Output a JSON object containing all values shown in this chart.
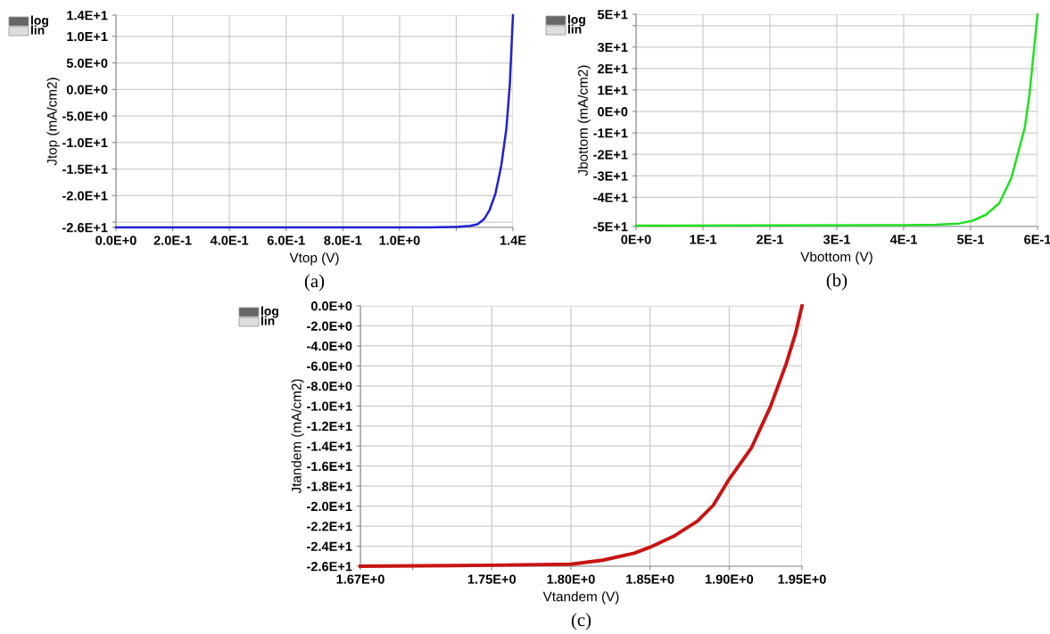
{
  "chart_data": [
    {
      "type": "line",
      "xlabel": "Vtop (V)",
      "ylabel": "Jtop (mA/cm2)",
      "annotations": [
        "log",
        "lin",
        "(a)"
      ],
      "grid": true,
      "xlim": [
        0,
        1.4
      ],
      "ylim": [
        -26,
        14
      ],
      "xticks": [
        {
          "value": 0,
          "label": "0.0E+0"
        },
        {
          "value": 0.2,
          "label": "2.0E-1"
        },
        {
          "value": 0.4,
          "label": "4.0E-1"
        },
        {
          "value": 0.6,
          "label": "6.0E-1"
        },
        {
          "value": 0.8,
          "label": "8.0E-1"
        },
        {
          "value": 1.0,
          "label": "1.0E+0"
        },
        {
          "value": 1.2,
          "label": null
        },
        {
          "value": 1.4,
          "label": "1.4E"
        }
      ],
      "yticks": [
        {
          "value": -26,
          "label": "-2.6E+1"
        },
        {
          "value": -25,
          "label": null
        },
        {
          "value": -20,
          "label": "-2.0E+1"
        },
        {
          "value": -15,
          "label": "-1.5E+1"
        },
        {
          "value": -10,
          "label": "-1.0E+1"
        },
        {
          "value": -5,
          "label": "-5.0E+0"
        },
        {
          "value": 0,
          "label": "0.0E+0"
        },
        {
          "value": 5,
          "label": "5.0E+0"
        },
        {
          "value": 10,
          "label": "1.0E+1"
        },
        {
          "value": 14,
          "label": "1.4E+1"
        }
      ],
      "series": [
        {
          "color": "#1f22d0",
          "x": [
            0,
            0.4,
            0.8,
            1.1,
            1.2,
            1.25,
            1.275,
            1.299,
            1.317,
            1.338,
            1.359,
            1.377,
            1.389,
            1.4
          ],
          "values": [
            -26,
            -26,
            -26,
            -26,
            -25.9,
            -25.7,
            -25.4,
            -24.4,
            -22.8,
            -19.7,
            -14.3,
            -7.3,
            1,
            14
          ]
        }
      ]
    },
    {
      "type": "line",
      "xlabel": "Vbottom (V)",
      "ylabel": "Jbottom (mA/cm2)",
      "annotations": [
        "log",
        "lin",
        "(b)"
      ],
      "grid": true,
      "xlim": [
        0,
        0.6
      ],
      "ylim": [
        -53.6,
        45.3
      ],
      "xticks": [
        {
          "value": 0,
          "label": "0E+0"
        },
        {
          "value": 0.1,
          "label": "1E-1"
        },
        {
          "value": 0.2,
          "label": "2E-1"
        },
        {
          "value": 0.3,
          "label": "3E-1"
        },
        {
          "value": 0.4,
          "label": "4E-1"
        },
        {
          "value": 0.5,
          "label": "5E-1"
        },
        {
          "value": 0.6,
          "label": "6E-1"
        }
      ],
      "yticks": [
        {
          "value": -53.6,
          "label": "-5E+1"
        },
        {
          "value": -40,
          "label": "-4E+1"
        },
        {
          "value": -30,
          "label": "-3E+1"
        },
        {
          "value": -20,
          "label": "-2E+1"
        },
        {
          "value": -10,
          "label": "-1E+1"
        },
        {
          "value": 0,
          "label": "0E+0"
        },
        {
          "value": 10,
          "label": "1E+1"
        },
        {
          "value": 20,
          "label": "2E+1"
        },
        {
          "value": 30,
          "label": "3E+1"
        },
        {
          "value": 40,
          "label": null
        },
        {
          "value": 45.3,
          "label": "5E+1"
        }
      ],
      "series": [
        {
          "color": "#22e022",
          "x": [
            0,
            0.2,
            0.4,
            0.448,
            0.483,
            0.503,
            0.523,
            0.543,
            0.561,
            0.581,
            0.588,
            0.6
          ],
          "values": [
            -53.2,
            -53.1,
            -53,
            -52.8,
            -52.2,
            -50.9,
            -48.1,
            -42.7,
            -30.9,
            -7.5,
            8,
            45.3
          ]
        }
      ]
    },
    {
      "type": "line",
      "xlabel": "Vtandem (V)",
      "ylabel": "Jtandem (mA/cm2)",
      "annotations": [
        "log",
        "lin",
        "(c)"
      ],
      "grid": true,
      "xlim": [
        1.667,
        1.946
      ],
      "ylim": [
        -26,
        0
      ],
      "xticks": [
        {
          "value": 1.667,
          "label": "1.67E+0"
        },
        {
          "value": 1.7,
          "label": null
        },
        {
          "value": 1.75,
          "label": "1.75E+0"
        },
        {
          "value": 1.8,
          "label": "1.80E+0"
        },
        {
          "value": 1.85,
          "label": "1.85E+0"
        },
        {
          "value": 1.9,
          "label": "1.90E+0"
        },
        {
          "value": 1.946,
          "label": "1.95E+0"
        }
      ],
      "yticks": [
        {
          "value": -26,
          "label": "-2.6E+1"
        },
        {
          "value": -24,
          "label": "-2.4E+1"
        },
        {
          "value": -22,
          "label": "-2.2E+1"
        },
        {
          "value": -20,
          "label": "-2.0E+1"
        },
        {
          "value": -18,
          "label": "-1.8E+1"
        },
        {
          "value": -16,
          "label": "-1.6E+1"
        },
        {
          "value": -14,
          "label": "-1.4E+1"
        },
        {
          "value": -12,
          "label": "-1.2E+1"
        },
        {
          "value": -10,
          "label": "-1.0E+1"
        },
        {
          "value": -8,
          "label": "-8.0E+0"
        },
        {
          "value": -6,
          "label": "-6.0E+0"
        },
        {
          "value": -4,
          "label": "-4.0E+0"
        },
        {
          "value": -2,
          "label": "-2.0E+0"
        },
        {
          "value": 0,
          "label": "0.0E+0"
        }
      ],
      "series": [
        {
          "color": "#c81414",
          "x": [
            1.667,
            1.75,
            1.8,
            1.82,
            1.84,
            1.85,
            1.865,
            1.88,
            1.89,
            1.9,
            1.914,
            1.926,
            1.936,
            1.942,
            1.946
          ],
          "values": [
            -26,
            -25.9,
            -25.8,
            -25.4,
            -24.7,
            -24.1,
            -23.0,
            -21.5,
            -19.9,
            -17.3,
            -14.2,
            -10.1,
            -5.8,
            -2.7,
            0
          ]
        }
      ]
    }
  ]
}
